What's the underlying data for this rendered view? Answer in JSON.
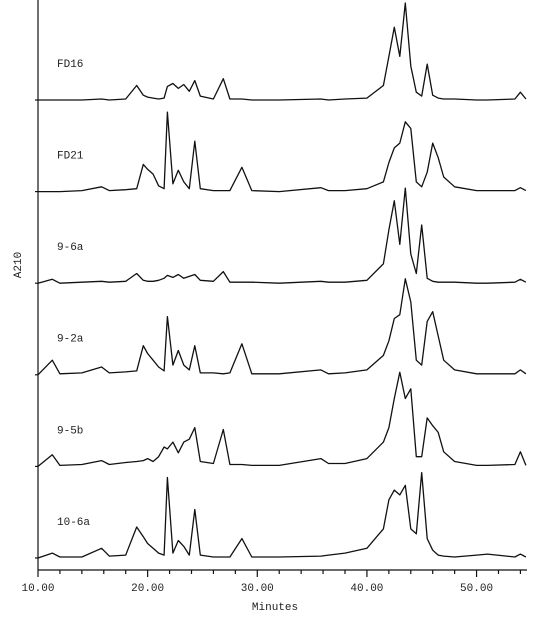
{
  "chart_data": {
    "type": "line",
    "x_label": "Minutes",
    "y_label": "A210",
    "color": "#111111",
    "xlim": [
      10,
      54.6
    ],
    "ylim": [
      0,
      100
    ],
    "xticks": [
      {
        "value": 10,
        "label": "10.00"
      },
      {
        "value": 20,
        "label": "20.00"
      },
      {
        "value": 30,
        "label": "30.00"
      },
      {
        "value": 40,
        "label": "40.00"
      },
      {
        "value": 50,
        "label": "50.00"
      }
    ],
    "xminorticks": [
      12,
      14,
      16,
      18,
      22,
      24,
      26,
      28,
      32,
      34,
      36,
      38,
      42,
      44,
      46,
      48,
      52,
      54
    ],
    "x": [
      10,
      11.3,
      12,
      14,
      15.8,
      16.5,
      18,
      19.0,
      19.6,
      20.0,
      20.5,
      21.0,
      21.5,
      21.8,
      22.3,
      22.8,
      23.3,
      23.8,
      24.3,
      24.8,
      26,
      26.9,
      27.5,
      28.6,
      29.5,
      32,
      35.8,
      36.5,
      38,
      40,
      41.5,
      42.0,
      42.5,
      43.0,
      43.5,
      44.0,
      44.5,
      45.0,
      45.5,
      46.0,
      46.5,
      47.0,
      48,
      50,
      51,
      53.5,
      54.0,
      54.5
    ],
    "series": [
      {
        "name": "FD16",
        "values": [
          0,
          0,
          0,
          0,
          1,
          0,
          1,
          15,
          5,
          3,
          2,
          1,
          2,
          14,
          17,
          12,
          16,
          9,
          20,
          4,
          1,
          22,
          1,
          1,
          0,
          0,
          1,
          0,
          1,
          2,
          15,
          45,
          75,
          45,
          100,
          35,
          8,
          4,
          37,
          5,
          2,
          1,
          1,
          0,
          0,
          1,
          8,
          1
        ]
      },
      {
        "name": "FD21",
        "values": [
          0,
          0,
          0,
          1,
          5,
          1,
          2,
          3,
          28,
          23,
          18,
          6,
          3,
          82,
          8,
          22,
          10,
          3,
          52,
          3,
          1,
          1,
          1,
          25,
          1,
          0,
          4,
          1,
          1,
          3,
          10,
          30,
          45,
          50,
          72,
          65,
          10,
          5,
          20,
          50,
          35,
          15,
          5,
          1,
          1,
          1,
          4,
          1
        ]
      },
      {
        "name": "9-6a",
        "values": [
          0,
          4,
          0,
          1,
          2,
          1,
          2,
          10,
          3,
          2,
          2,
          3,
          5,
          8,
          6,
          9,
          5,
          7,
          9,
          3,
          2,
          12,
          1,
          1,
          1,
          0,
          2,
          1,
          1,
          3,
          20,
          55,
          85,
          40,
          98,
          30,
          10,
          60,
          5,
          2,
          1,
          1,
          1,
          0,
          0,
          1,
          4,
          1
        ]
      },
      {
        "name": "9-2a",
        "values": [
          0,
          15,
          1,
          2,
          8,
          2,
          3,
          4,
          30,
          22,
          15,
          8,
          4,
          60,
          10,
          25,
          10,
          5,
          30,
          2,
          2,
          1,
          2,
          32,
          1,
          1,
          5,
          1,
          2,
          5,
          20,
          35,
          58,
          62,
          99,
          75,
          15,
          10,
          55,
          65,
          40,
          15,
          5,
          1,
          1,
          1,
          5,
          1
        ]
      },
      {
        "name": "9-5b",
        "values": [
          0,
          12,
          1,
          2,
          6,
          2,
          4,
          5,
          6,
          8,
          5,
          10,
          20,
          18,
          25,
          14,
          25,
          28,
          40,
          5,
          3,
          38,
          2,
          2,
          1,
          1,
          8,
          3,
          3,
          8,
          25,
          40,
          70,
          97,
          70,
          80,
          10,
          10,
          50,
          42,
          35,
          15,
          5,
          1,
          1,
          2,
          15,
          1
        ]
      },
      {
        "name": "10-6a",
        "values": [
          0,
          5,
          1,
          1,
          10,
          2,
          3,
          32,
          22,
          15,
          10,
          5,
          3,
          83,
          5,
          18,
          12,
          3,
          50,
          3,
          1,
          1,
          1,
          20,
          1,
          1,
          2,
          3,
          5,
          10,
          30,
          60,
          70,
          65,
          75,
          30,
          25,
          88,
          20,
          8,
          3,
          2,
          1,
          3,
          4,
          1,
          4,
          1
        ]
      }
    ]
  }
}
